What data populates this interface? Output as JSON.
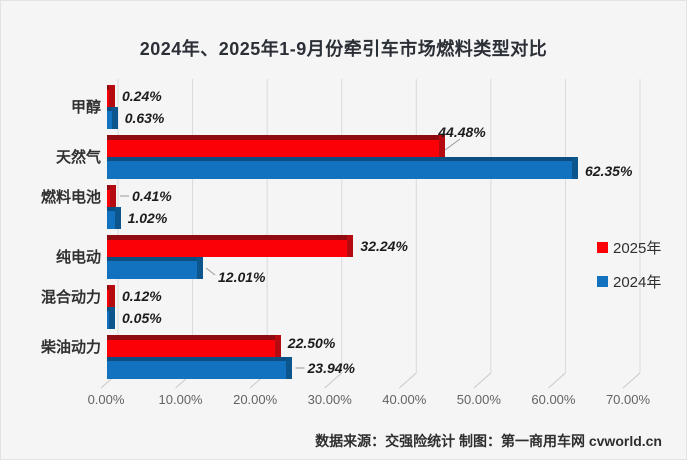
{
  "title": "2024年、2025年1-9月份牵引车市场燃料类型对比",
  "footer": {
    "text": "数据来源：交强险统计  制图：第一商用车网 cvworld.cn"
  },
  "colors": {
    "red_2025": "#fb0007",
    "blue_2024": "#1372bf",
    "gridline": "#dadada",
    "background": "#f5f5f6"
  },
  "chart_data": {
    "type": "bar",
    "orientation": "horizontal",
    "title": "2024年、2025年1-9月份牵引车市场燃料类型对比",
    "categories": [
      "甲醇",
      "天然气",
      "燃料电池",
      "纯电动",
      "混合动力",
      "柴油动力"
    ],
    "series": [
      {
        "name": "2025年",
        "color": "#fb0007",
        "values": [
          0.24,
          44.48,
          0.41,
          32.24,
          0.12,
          22.5
        ],
        "labels": [
          "0.24%",
          "44.48%",
          "0.41%",
          "32.24%",
          "0.12%",
          "22.50%"
        ]
      },
      {
        "name": "2024年",
        "color": "#1372bf",
        "values": [
          0.63,
          62.35,
          1.02,
          12.01,
          0.05,
          23.94
        ],
        "labels": [
          "0.63%",
          "62.35%",
          "1.02%",
          "12.01%",
          "0.05%",
          "23.94%"
        ]
      }
    ],
    "x_ticks": [
      "0.00%",
      "10.00%",
      "20.00%",
      "30.00%",
      "40.00%",
      "50.00%",
      "60.00%",
      "70.00%"
    ],
    "xlim": [
      0,
      70
    ],
    "grid": true,
    "legend_position": "right"
  }
}
